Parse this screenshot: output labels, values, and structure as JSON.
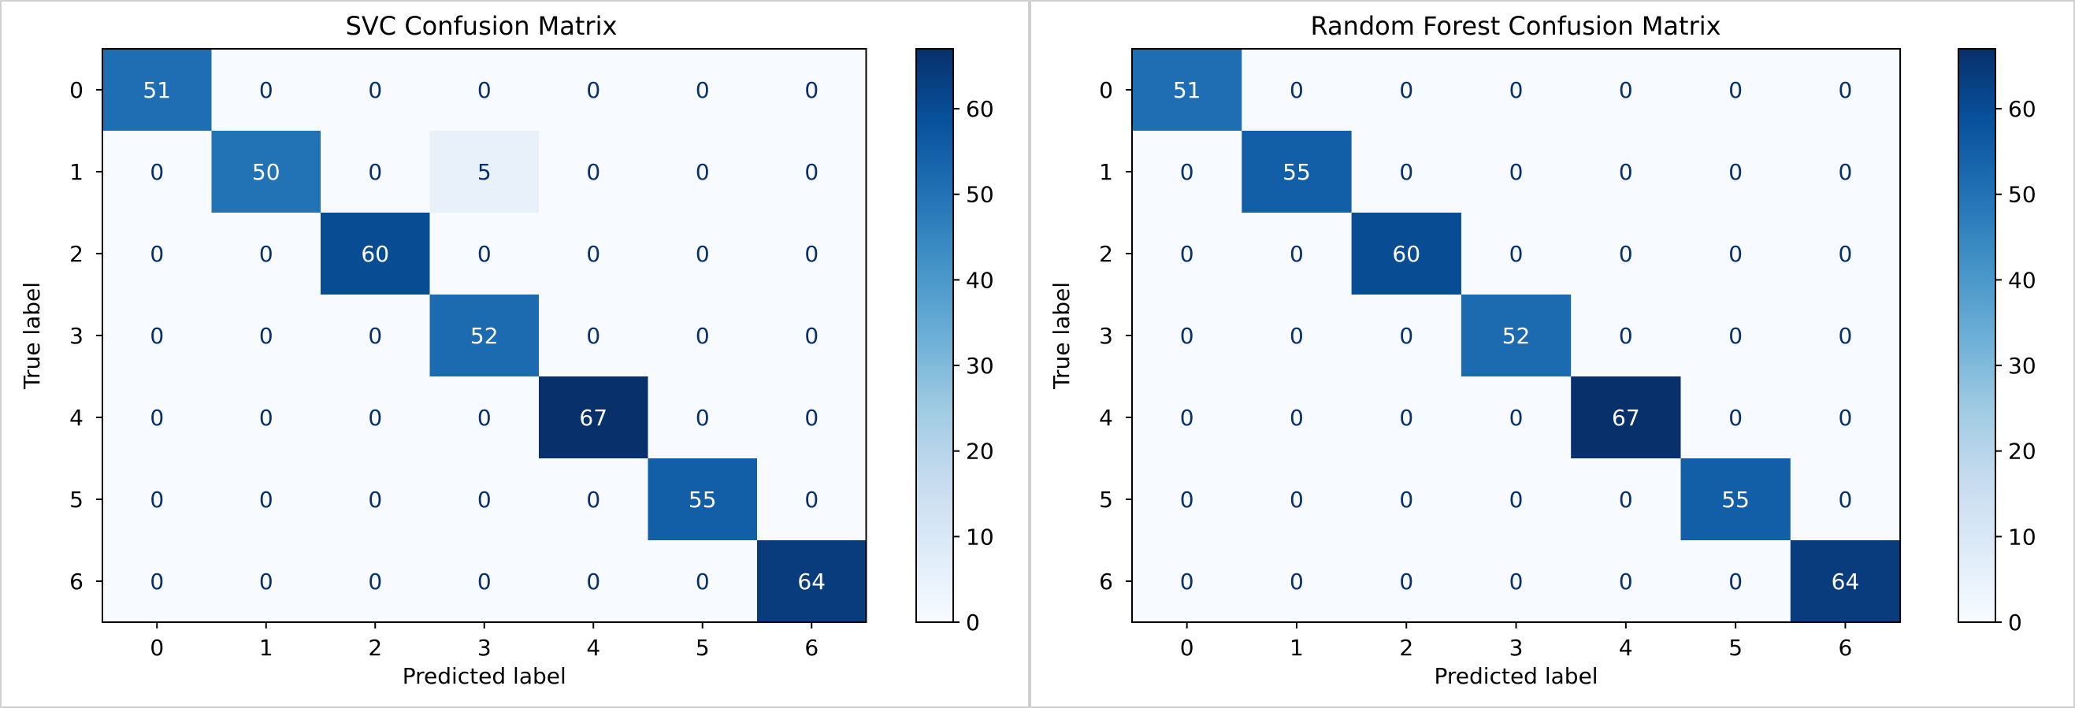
{
  "chart_data": [
    {
      "type": "heatmap",
      "title": "SVC Confusion Matrix",
      "xlabel": "Predicted label",
      "ylabel": "True label",
      "x_ticks": [
        "0",
        "1",
        "2",
        "3",
        "4",
        "5",
        "6"
      ],
      "y_ticks": [
        "0",
        "1",
        "2",
        "3",
        "4",
        "5",
        "6"
      ],
      "matrix": [
        [
          51,
          0,
          0,
          0,
          0,
          0,
          0
        ],
        [
          0,
          50,
          0,
          5,
          0,
          0,
          0
        ],
        [
          0,
          0,
          60,
          0,
          0,
          0,
          0
        ],
        [
          0,
          0,
          0,
          52,
          0,
          0,
          0
        ],
        [
          0,
          0,
          0,
          0,
          67,
          0,
          0
        ],
        [
          0,
          0,
          0,
          0,
          0,
          55,
          0
        ],
        [
          0,
          0,
          0,
          0,
          0,
          0,
          64
        ]
      ],
      "colormap": "Blues",
      "colorbar": {
        "range": [
          0,
          67
        ],
        "ticks": [
          0,
          10,
          20,
          30,
          40,
          50,
          60
        ]
      }
    },
    {
      "type": "heatmap",
      "title": "Random Forest Confusion Matrix",
      "xlabel": "Predicted label",
      "ylabel": "True label",
      "x_ticks": [
        "0",
        "1",
        "2",
        "3",
        "4",
        "5",
        "6"
      ],
      "y_ticks": [
        "0",
        "1",
        "2",
        "3",
        "4",
        "5",
        "6"
      ],
      "matrix": [
        [
          51,
          0,
          0,
          0,
          0,
          0,
          0
        ],
        [
          0,
          55,
          0,
          0,
          0,
          0,
          0
        ],
        [
          0,
          0,
          60,
          0,
          0,
          0,
          0
        ],
        [
          0,
          0,
          0,
          52,
          0,
          0,
          0
        ],
        [
          0,
          0,
          0,
          0,
          67,
          0,
          0
        ],
        [
          0,
          0,
          0,
          0,
          0,
          55,
          0
        ],
        [
          0,
          0,
          0,
          0,
          0,
          0,
          64
        ]
      ],
      "colormap": "Blues",
      "colorbar": {
        "range": [
          0,
          67
        ],
        "ticks": [
          0,
          10,
          20,
          30,
          40,
          50,
          60
        ]
      }
    }
  ],
  "colors": {
    "divider": "#d0d0d0",
    "axis": "#000000",
    "text_dark": "#ffffff",
    "text_light": "#08306b"
  }
}
